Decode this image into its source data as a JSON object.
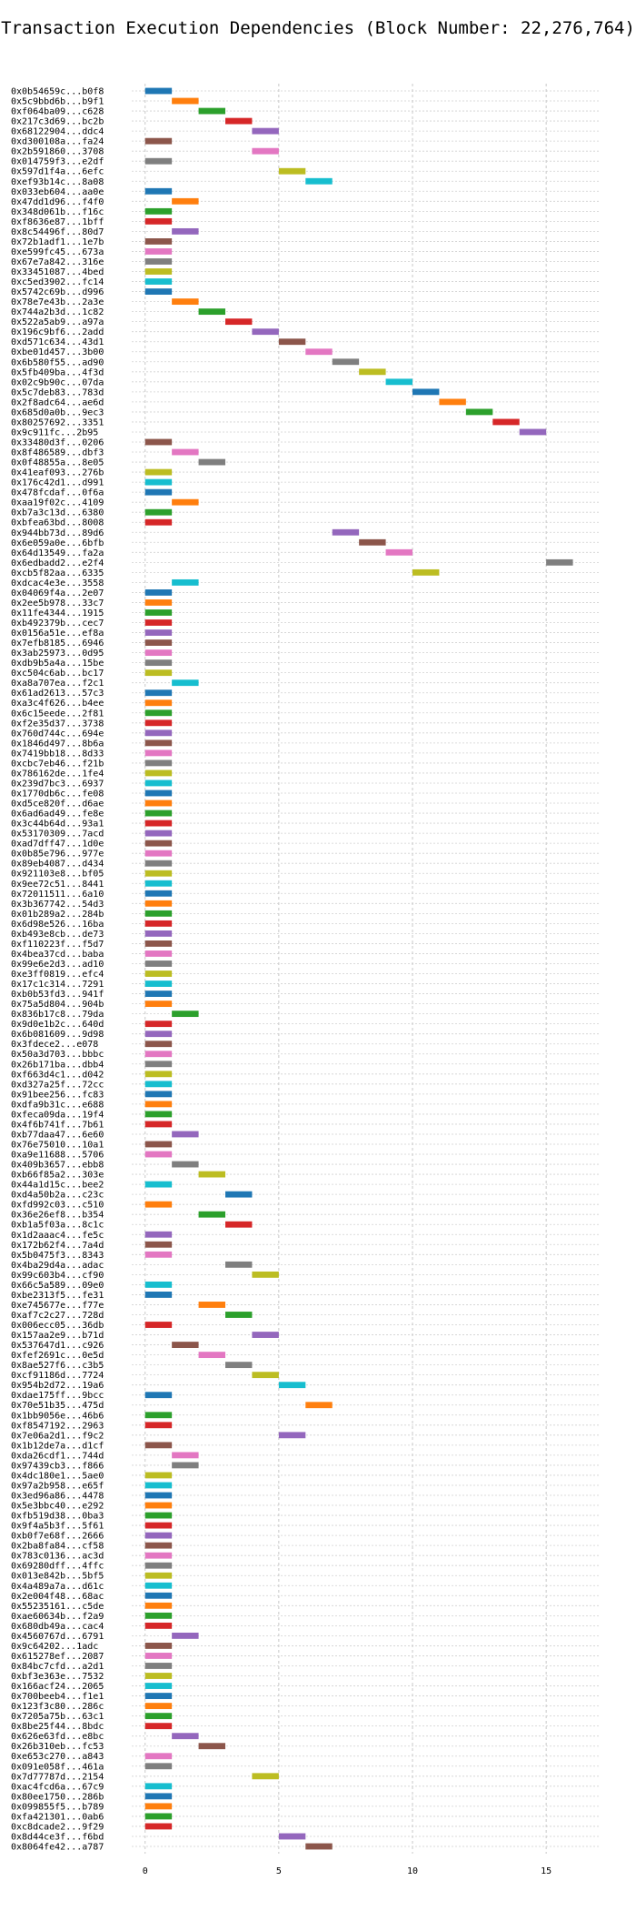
{
  "chart_data": {
    "type": "bar",
    "orientation": "horizontal",
    "title": "Transaction Execution Dependencies (Block Number: 22,276,764)",
    "xlabel": "",
    "ylabel": "",
    "xlim": [
      -0.5,
      17
    ],
    "xticks": [
      0,
      5,
      10,
      15
    ],
    "grid": true,
    "legend": "none",
    "palette": [
      "#1f77b4",
      "#ff7f0e",
      "#2ca02c",
      "#d62728",
      "#9467bd",
      "#8c564b",
      "#e377c2",
      "#7f7f7f",
      "#bcbd22",
      "#17becf"
    ],
    "rows": [
      {
        "label": "0x0b54659c...b0f8",
        "start": 0,
        "end": 1
      },
      {
        "label": "0x5c9bbd6b...b9f1",
        "start": 1,
        "end": 2
      },
      {
        "label": "0xf064ba09...c628",
        "start": 2,
        "end": 3
      },
      {
        "label": "0x217c3d69...bc2b",
        "start": 3,
        "end": 4
      },
      {
        "label": "0x68122904...ddc4",
        "start": 4,
        "end": 5
      },
      {
        "label": "0xd300108a...fa24",
        "start": 0,
        "end": 1
      },
      {
        "label": "0x2b591860...3708",
        "start": 4,
        "end": 5
      },
      {
        "label": "0x014759f3...e2df",
        "start": 0,
        "end": 1
      },
      {
        "label": "0x597d1f4a...6efc",
        "start": 5,
        "end": 6
      },
      {
        "label": "0xef93b14c...8a08",
        "start": 6,
        "end": 7
      },
      {
        "label": "0x033eb604...aa0e",
        "start": 0,
        "end": 1
      },
      {
        "label": "0x47dd1d96...f4f0",
        "start": 1,
        "end": 2
      },
      {
        "label": "0x348d061b...f16c",
        "start": 0,
        "end": 1
      },
      {
        "label": "0xf8636e87...1bff",
        "start": 0,
        "end": 1
      },
      {
        "label": "0x8c54496f...80d7",
        "start": 1,
        "end": 2
      },
      {
        "label": "0x72b1adf1...1e7b",
        "start": 0,
        "end": 1
      },
      {
        "label": "0xe599fc45...673a",
        "start": 0,
        "end": 1
      },
      {
        "label": "0x67e7a842...316e",
        "start": 0,
        "end": 1
      },
      {
        "label": "0x33451087...4bed",
        "start": 0,
        "end": 1
      },
      {
        "label": "0xc5ed3902...fc14",
        "start": 0,
        "end": 1
      },
      {
        "label": "0x5742c69b...d996",
        "start": 0,
        "end": 1
      },
      {
        "label": "0x78e7e43b...2a3e",
        "start": 1,
        "end": 2
      },
      {
        "label": "0x744a2b3d...1c82",
        "start": 2,
        "end": 3
      },
      {
        "label": "0x522a5ab9...a97a",
        "start": 3,
        "end": 4
      },
      {
        "label": "0x196c9bf6...2add",
        "start": 4,
        "end": 5
      },
      {
        "label": "0xd571c634...43d1",
        "start": 5,
        "end": 6
      },
      {
        "label": "0xbe01d457...3b00",
        "start": 6,
        "end": 7
      },
      {
        "label": "0x6b580f55...ad90",
        "start": 7,
        "end": 8
      },
      {
        "label": "0x5fb409ba...4f3d",
        "start": 8,
        "end": 9
      },
      {
        "label": "0x02c9b90c...07da",
        "start": 9,
        "end": 10
      },
      {
        "label": "0x5c7deb83...783d",
        "start": 10,
        "end": 11
      },
      {
        "label": "0x2f8adc64...ae6d",
        "start": 11,
        "end": 12
      },
      {
        "label": "0x685d0a0b...9ec3",
        "start": 12,
        "end": 13
      },
      {
        "label": "0x80257692...3351",
        "start": 13,
        "end": 14
      },
      {
        "label": "0x9c911fc...2b95",
        "start": 14,
        "end": 15
      },
      {
        "label": "0x33480d3f...0206",
        "start": 0,
        "end": 1
      },
      {
        "label": "0x8f486589...dbf3",
        "start": 1,
        "end": 2
      },
      {
        "label": "0x0f48855a...8e05",
        "start": 2,
        "end": 3
      },
      {
        "label": "0x41eaf093...276b",
        "start": 0,
        "end": 1
      },
      {
        "label": "0x176c42d1...d991",
        "start": 0,
        "end": 1
      },
      {
        "label": "0x478fcdaf...0f6a",
        "start": 0,
        "end": 1
      },
      {
        "label": "0xaa19f02c...4109",
        "start": 1,
        "end": 2
      },
      {
        "label": "0xb7a3c13d...6380",
        "start": 0,
        "end": 1
      },
      {
        "label": "0xbfea63bd...8008",
        "start": 0,
        "end": 1
      },
      {
        "label": "0x944bb73d...89d6",
        "start": 7,
        "end": 8
      },
      {
        "label": "0x6e059a0e...6bfb",
        "start": 8,
        "end": 9
      },
      {
        "label": "0x64d13549...fa2a",
        "start": 9,
        "end": 10
      },
      {
        "label": "0x6edbadd2...e2f4",
        "start": 15,
        "end": 16
      },
      {
        "label": "0xcb5f82aa...6335",
        "start": 10,
        "end": 11
      },
      {
        "label": "0xdcac4e3e...3558",
        "start": 1,
        "end": 2
      },
      {
        "label": "0x04069f4a...2e07",
        "start": 0,
        "end": 1
      },
      {
        "label": "0x2ee5b978...33c7",
        "start": 0,
        "end": 1
      },
      {
        "label": "0x11fe4344...1915",
        "start": 0,
        "end": 1
      },
      {
        "label": "0xb492379b...cec7",
        "start": 0,
        "end": 1
      },
      {
        "label": "0x0156a51e...ef8a",
        "start": 0,
        "end": 1
      },
      {
        "label": "0x7efb8185...6946",
        "start": 0,
        "end": 1
      },
      {
        "label": "0x3ab25973...0d95",
        "start": 0,
        "end": 1
      },
      {
        "label": "0xdb9b5a4a...15be",
        "start": 0,
        "end": 1
      },
      {
        "label": "0xc504c6ab...bc17",
        "start": 0,
        "end": 1
      },
      {
        "label": "0xa8a707ea...f2c1",
        "start": 1,
        "end": 2
      },
      {
        "label": "0x61ad2613...57c3",
        "start": 0,
        "end": 1
      },
      {
        "label": "0xa3c4f626...b4ee",
        "start": 0,
        "end": 1
      },
      {
        "label": "0x6c15eede...2f81",
        "start": 0,
        "end": 1
      },
      {
        "label": "0xf2e35d37...3738",
        "start": 0,
        "end": 1
      },
      {
        "label": "0x760d744c...694e",
        "start": 0,
        "end": 1
      },
      {
        "label": "0x1846d497...8b6a",
        "start": 0,
        "end": 1
      },
      {
        "label": "0x7419bb18...8d33",
        "start": 0,
        "end": 1
      },
      {
        "label": "0xcbc7eb46...f21b",
        "start": 0,
        "end": 1
      },
      {
        "label": "0x786162de...1fe4",
        "start": 0,
        "end": 1
      },
      {
        "label": "0x239d7bc3...6937",
        "start": 0,
        "end": 1
      },
      {
        "label": "0x1770db6c...fe08",
        "start": 0,
        "end": 1
      },
      {
        "label": "0xd5ce820f...d6ae",
        "start": 0,
        "end": 1
      },
      {
        "label": "0x6ad6ad49...fe8e",
        "start": 0,
        "end": 1
      },
      {
        "label": "0x3c44b64d...93a1",
        "start": 0,
        "end": 1
      },
      {
        "label": "0x53170309...7acd",
        "start": 0,
        "end": 1
      },
      {
        "label": "0xad7dff47...1d0e",
        "start": 0,
        "end": 1
      },
      {
        "label": "0x0b85e796...977e",
        "start": 0,
        "end": 1
      },
      {
        "label": "0x89eb4087...d434",
        "start": 0,
        "end": 1
      },
      {
        "label": "0x921103e8...bf05",
        "start": 0,
        "end": 1
      },
      {
        "label": "0x9ee72c51...8441",
        "start": 0,
        "end": 1
      },
      {
        "label": "0x72011511...6a10",
        "start": 0,
        "end": 1
      },
      {
        "label": "0x3b367742...54d3",
        "start": 0,
        "end": 1
      },
      {
        "label": "0x01b289a2...284b",
        "start": 0,
        "end": 1
      },
      {
        "label": "0x6d98e526...16ba",
        "start": 0,
        "end": 1
      },
      {
        "label": "0xb493e8cb...de73",
        "start": 0,
        "end": 1
      },
      {
        "label": "0xf110223f...f5d7",
        "start": 0,
        "end": 1
      },
      {
        "label": "0x4bea37cd...baba",
        "start": 0,
        "end": 1
      },
      {
        "label": "0x99e6e2d3...ad10",
        "start": 0,
        "end": 1
      },
      {
        "label": "0xe3ff0819...efc4",
        "start": 0,
        "end": 1
      },
      {
        "label": "0x17c1c314...7291",
        "start": 0,
        "end": 1
      },
      {
        "label": "0xb0b53fd3...941f",
        "start": 0,
        "end": 1
      },
      {
        "label": "0x75a5d804...904b",
        "start": 0,
        "end": 1
      },
      {
        "label": "0x836b17c8...79da",
        "start": 1,
        "end": 2
      },
      {
        "label": "0x9d0e1b2c...640d",
        "start": 0,
        "end": 1
      },
      {
        "label": "0x6b081609...9d98",
        "start": 0,
        "end": 1
      },
      {
        "label": "0x3fdece2...e078",
        "start": 0,
        "end": 1
      },
      {
        "label": "0x50a3d703...bbbc",
        "start": 0,
        "end": 1
      },
      {
        "label": "0x26b171ba...dbb4",
        "start": 0,
        "end": 1
      },
      {
        "label": "0xf663d4c1...d042",
        "start": 0,
        "end": 1
      },
      {
        "label": "0xd327a25f...72cc",
        "start": 0,
        "end": 1
      },
      {
        "label": "0x91bee256...fc83",
        "start": 0,
        "end": 1
      },
      {
        "label": "0xdfa9b31c...e688",
        "start": 0,
        "end": 1
      },
      {
        "label": "0xfeca09da...19f4",
        "start": 0,
        "end": 1
      },
      {
        "label": "0x4f6b741f...7b61",
        "start": 0,
        "end": 1
      },
      {
        "label": "0xb77daa47...6e60",
        "start": 1,
        "end": 2
      },
      {
        "label": "0x76e75010...10a1",
        "start": 0,
        "end": 1
      },
      {
        "label": "0xa9e11688...5706",
        "start": 0,
        "end": 1
      },
      {
        "label": "0x409b3657...ebb8",
        "start": 1,
        "end": 2
      },
      {
        "label": "0xb66f85a2...303e",
        "start": 2,
        "end": 3
      },
      {
        "label": "0x44a1d15c...bee2",
        "start": 0,
        "end": 1
      },
      {
        "label": "0xd4a50b2a...c23c",
        "start": 3,
        "end": 4
      },
      {
        "label": "0xfd992c03...c510",
        "start": 0,
        "end": 1
      },
      {
        "label": "0x36e26ef8...b354",
        "start": 2,
        "end": 3
      },
      {
        "label": "0xb1a5f03a...8c1c",
        "start": 3,
        "end": 4
      },
      {
        "label": "0x1d2aaac4...fe5c",
        "start": 0,
        "end": 1
      },
      {
        "label": "0x172b62f4...7a4d",
        "start": 0,
        "end": 1
      },
      {
        "label": "0x5b0475f3...8343",
        "start": 0,
        "end": 1
      },
      {
        "label": "0x4ba29d4a...adac",
        "start": 3,
        "end": 4
      },
      {
        "label": "0x99c603b4...cf90",
        "start": 4,
        "end": 5
      },
      {
        "label": "0x66c5a589...09e0",
        "start": 0,
        "end": 1
      },
      {
        "label": "0xbe2313f5...fe31",
        "start": 0,
        "end": 1
      },
      {
        "label": "0xe745677e...f77e",
        "start": 2,
        "end": 3
      },
      {
        "label": "0xaf7c2c27...728d",
        "start": 3,
        "end": 4
      },
      {
        "label": "0x006ecc05...36db",
        "start": 0,
        "end": 1
      },
      {
        "label": "0x157aa2e9...b71d",
        "start": 4,
        "end": 5
      },
      {
        "label": "0x537647d1...c926",
        "start": 1,
        "end": 2
      },
      {
        "label": "0xfef2691c...0e5d",
        "start": 2,
        "end": 3
      },
      {
        "label": "0x8ae527f6...c3b5",
        "start": 3,
        "end": 4
      },
      {
        "label": "0xcf91186d...7724",
        "start": 4,
        "end": 5
      },
      {
        "label": "0x954b2d72...19a6",
        "start": 5,
        "end": 6
      },
      {
        "label": "0xdae175ff...9bcc",
        "start": 0,
        "end": 1
      },
      {
        "label": "0x70e51b35...475d",
        "start": 6,
        "end": 7
      },
      {
        "label": "0x1bb9056e...46b6",
        "start": 0,
        "end": 1
      },
      {
        "label": "0xf8547192...2963",
        "start": 0,
        "end": 1
      },
      {
        "label": "0x7e06a2d1...f9c2",
        "start": 5,
        "end": 6
      },
      {
        "label": "0x1b12de7a...d1cf",
        "start": 0,
        "end": 1
      },
      {
        "label": "0xda26cdf1...744d",
        "start": 1,
        "end": 2
      },
      {
        "label": "0x97439cb3...f866",
        "start": 1,
        "end": 2
      },
      {
        "label": "0x4dc180e1...5ae0",
        "start": 0,
        "end": 1
      },
      {
        "label": "0x97a2b958...e65f",
        "start": 0,
        "end": 1
      },
      {
        "label": "0x3ed96a86...4478",
        "start": 0,
        "end": 1
      },
      {
        "label": "0x5e3bbc40...e292",
        "start": 0,
        "end": 1
      },
      {
        "label": "0xfb519d38...0ba3",
        "start": 0,
        "end": 1
      },
      {
        "label": "0x9f4a5b3f...5f61",
        "start": 0,
        "end": 1
      },
      {
        "label": "0xb0f7e68f...2666",
        "start": 0,
        "end": 1
      },
      {
        "label": "0x2ba8fa84...cf58",
        "start": 0,
        "end": 1
      },
      {
        "label": "0x783c0136...ac3d",
        "start": 0,
        "end": 1
      },
      {
        "label": "0x69280dff...4ffc",
        "start": 0,
        "end": 1
      },
      {
        "label": "0x013e842b...5bf5",
        "start": 0,
        "end": 1
      },
      {
        "label": "0x4a489a7a...d61c",
        "start": 0,
        "end": 1
      },
      {
        "label": "0x2e004f48...68ac",
        "start": 0,
        "end": 1
      },
      {
        "label": "0x55235161...c5de",
        "start": 0,
        "end": 1
      },
      {
        "label": "0xae60634b...f2a9",
        "start": 0,
        "end": 1
      },
      {
        "label": "0x680db49a...cac4",
        "start": 0,
        "end": 1
      },
      {
        "label": "0x4560767d...6791",
        "start": 1,
        "end": 2
      },
      {
        "label": "0x9c64202...1adc",
        "start": 0,
        "end": 1
      },
      {
        "label": "0x615278ef...2087",
        "start": 0,
        "end": 1
      },
      {
        "label": "0x84bc7cfd...a2d1",
        "start": 0,
        "end": 1
      },
      {
        "label": "0xbf3e363e...7532",
        "start": 0,
        "end": 1
      },
      {
        "label": "0x166acf24...2065",
        "start": 0,
        "end": 1
      },
      {
        "label": "0x700beeb4...f1e1",
        "start": 0,
        "end": 1
      },
      {
        "label": "0x123f3c80...286c",
        "start": 0,
        "end": 1
      },
      {
        "label": "0x7205a75b...63c1",
        "start": 0,
        "end": 1
      },
      {
        "label": "0x8be25f44...8bdc",
        "start": 0,
        "end": 1
      },
      {
        "label": "0x626e63fd...e8bc",
        "start": 1,
        "end": 2
      },
      {
        "label": "0x26b310eb...fc53",
        "start": 2,
        "end": 3
      },
      {
        "label": "0xe653c270...a843",
        "start": 0,
        "end": 1
      },
      {
        "label": "0x091e058f...461a",
        "start": 0,
        "end": 1
      },
      {
        "label": "0x7d77787d...2154",
        "start": 4,
        "end": 5
      },
      {
        "label": "0xac4fcd6a...67c9",
        "start": 0,
        "end": 1
      },
      {
        "label": "0x80ee1750...286b",
        "start": 0,
        "end": 1
      },
      {
        "label": "0x099855f5...b789",
        "start": 0,
        "end": 1
      },
      {
        "label": "0xfa421301...0ab6",
        "start": 0,
        "end": 1
      },
      {
        "label": "0xc8dcade2...9f29",
        "start": 0,
        "end": 1
      },
      {
        "label": "0x8d44ce3f...f6bd",
        "start": 5,
        "end": 6
      },
      {
        "label": "0x8064fe42...a787",
        "start": 6,
        "end": 7
      }
    ]
  }
}
